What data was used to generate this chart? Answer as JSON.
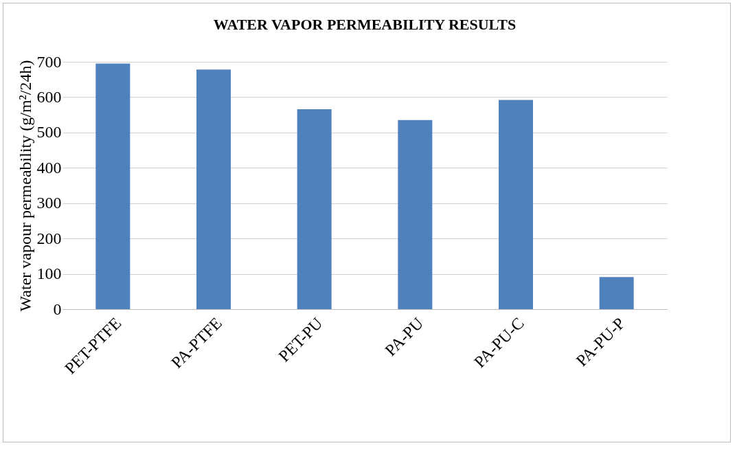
{
  "chart_data": {
    "type": "bar",
    "title": "WATER VAPOR PERMEABILITY RESULTS",
    "ylabel": "Water vapour permeability  (g/m²/24h)",
    "categories": [
      "PET-PTFE",
      "PA-PTFE",
      "PET-PU",
      "PA-PU",
      "PA-PU-C",
      "PA-PU-P"
    ],
    "values": [
      695,
      678,
      566,
      535,
      592,
      91
    ],
    "color": "#4f81bd",
    "ylim": [
      0,
      700
    ],
    "yticks": [
      0,
      100,
      200,
      300,
      400,
      500,
      600,
      700
    ],
    "grid": "y"
  }
}
